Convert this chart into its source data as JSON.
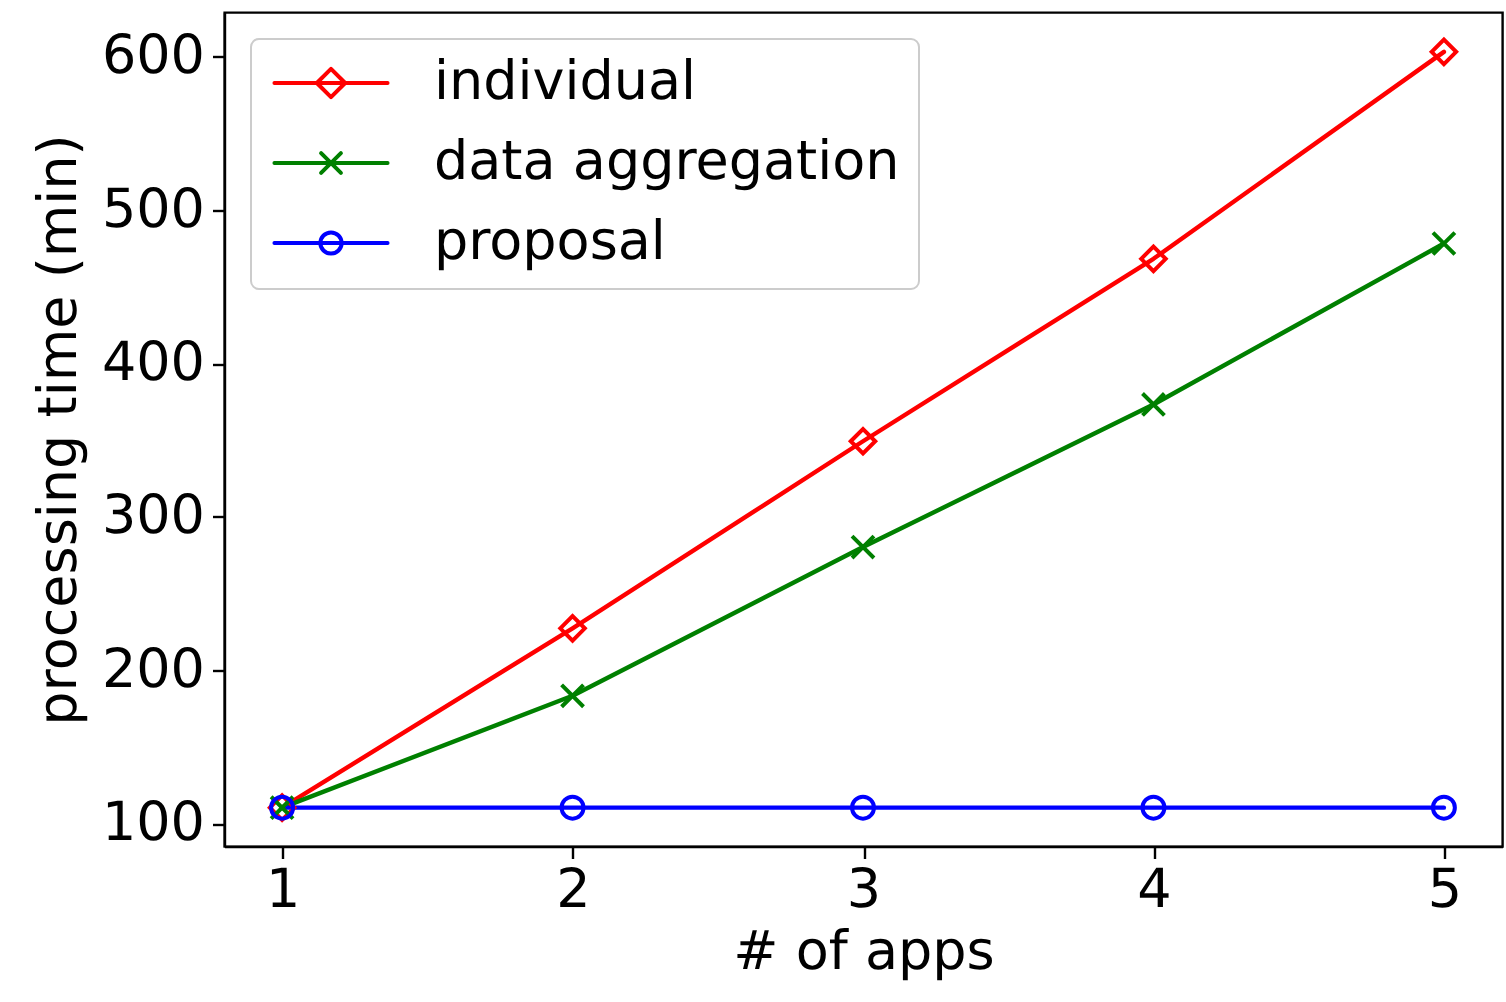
{
  "chart_data": {
    "type": "line",
    "xlabel": "# of apps",
    "ylabel": "processing time (min)",
    "x": [
      1,
      2,
      3,
      4,
      5
    ],
    "series": [
      {
        "name": "individual",
        "color": "#ff0000",
        "marker": "diamond",
        "values": [
          110,
          227,
          349,
          468,
          603
        ]
      },
      {
        "name": "data aggregation",
        "color": "#008000",
        "marker": "cross",
        "values": [
          110,
          183,
          280,
          373,
          478
        ]
      },
      {
        "name": "proposal",
        "color": "#0000ff",
        "marker": "circle",
        "values": [
          110,
          110,
          110,
          110,
          110
        ]
      }
    ],
    "xlim": [
      0.8,
      5.2
    ],
    "ylim": [
      85,
      629
    ],
    "xticks": [
      1,
      2,
      3,
      4,
      5
    ],
    "yticks": [
      100,
      200,
      300,
      400,
      500,
      600
    ],
    "grid": false,
    "legend": "top left",
    "line_style": "solid"
  }
}
